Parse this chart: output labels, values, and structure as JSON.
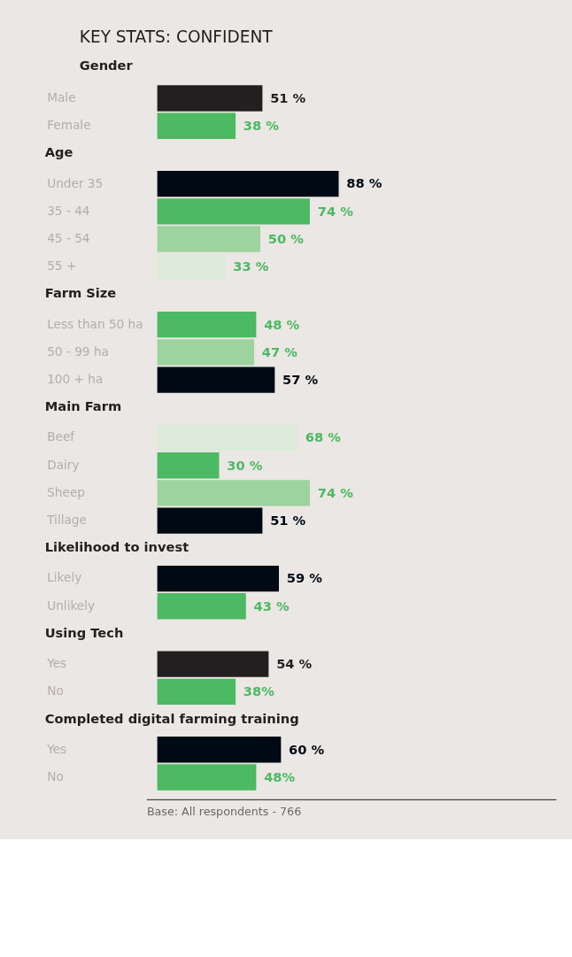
{
  "chart_data": [
    {
      "type": "bar",
      "orientation": "horizontal",
      "title": "KEY STATS: CONFIDENT",
      "subtitle": "Gender",
      "categories": [
        "Male",
        "Female"
      ],
      "values": [
        51,
        38
      ],
      "colors": [
        "#231f20",
        "#4cb963"
      ],
      "value_labels": [
        "51 %",
        "38 %"
      ]
    },
    {
      "type": "bar",
      "orientation": "horizontal",
      "subtitle": "Age",
      "categories": [
        "Under 35",
        "35 - 44",
        "45 - 54",
        "55 +"
      ],
      "values": [
        88,
        74,
        50,
        33
      ],
      "colors": [
        "#000a14",
        "#4cb963",
        "#9dd39e",
        "#dcebd9"
      ],
      "value_labels": [
        "88 %",
        "74 %",
        "50 %",
        "33 %"
      ]
    },
    {
      "type": "bar",
      "orientation": "horizontal",
      "subtitle": "Farm Size",
      "categories": [
        "Less than 50 ha",
        "50 - 99 ha",
        "100 + ha"
      ],
      "values": [
        48,
        47,
        57
      ],
      "colors": [
        "#4cb963",
        "#9dd39e",
        "#000a14"
      ],
      "value_labels": [
        "48 %",
        "47 %",
        "57 %"
      ]
    },
    {
      "type": "bar",
      "orientation": "horizontal",
      "subtitle": "Main Farm",
      "categories": [
        "Beef",
        "Dairy",
        "Sheep",
        "Tillage"
      ],
      "values": [
        68,
        30,
        74,
        51
      ],
      "colors": [
        "#dcebd9",
        "#4cb963",
        "#9dd39e",
        "#000a14"
      ],
      "value_labels": [
        "68 %",
        "30 %",
        "74 %",
        "51 %"
      ]
    },
    {
      "type": "bar",
      "orientation": "horizontal",
      "subtitle": "Likelihood to invest",
      "categories": [
        "Likely",
        "Unlikely"
      ],
      "values": [
        59,
        43
      ],
      "colors": [
        "#000a14",
        "#4cb963"
      ],
      "value_labels": [
        "59 %",
        "43 %"
      ]
    },
    {
      "type": "bar",
      "orientation": "horizontal",
      "subtitle": "Using Tech",
      "categories": [
        "Yes",
        "No"
      ],
      "values": [
        54,
        38
      ],
      "colors": [
        "#231f20",
        "#4cb963"
      ],
      "value_labels": [
        "54 %",
        "38%"
      ]
    },
    {
      "type": "bar",
      "orientation": "horizontal",
      "subtitle": "Completed digital farming training",
      "categories": [
        "Yes",
        "No"
      ],
      "values": [
        60,
        48
      ],
      "colors": [
        "#000a14",
        "#4cb963"
      ],
      "value_labels": [
        "60 %",
        "48%"
      ],
      "annotations": [
        "Base: All respondents - 766"
      ]
    }
  ]
}
